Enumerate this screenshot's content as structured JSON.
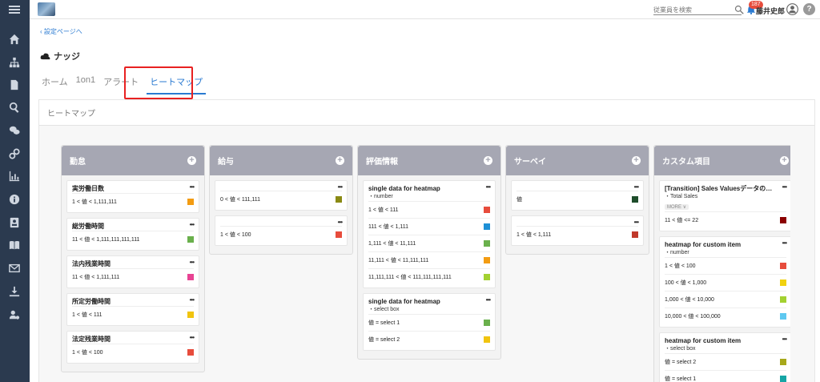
{
  "topbar": {
    "search_placeholder": "従業員を検索",
    "notification_count": "187",
    "user_name": "藤井史郎",
    "help_label": "?"
  },
  "back_link": "設定ページへ",
  "page_title": "ナッジ",
  "tabs": [
    "ホーム",
    "1on1",
    "アラート",
    "ヒートマップ"
  ],
  "active_tab": "ヒートマップ",
  "panel_title": "ヒートマップ",
  "columns": [
    {
      "title": "勤怠",
      "cards": [
        {
          "title": "実労働日数",
          "rows": [
            {
              "label": "1 < 値 < 1,111,111",
              "color": "#f39c12"
            }
          ]
        },
        {
          "title": "総労働時間",
          "rows": [
            {
              "label": "11 < 値 < 1,111,111,111,111",
              "color": "#6ab04c"
            }
          ]
        },
        {
          "title": "法内残業時間",
          "rows": [
            {
              "label": "11 < 値 < 1,111,111",
              "color": "#e84393"
            }
          ]
        },
        {
          "title": "所定労働時間",
          "rows": [
            {
              "label": "1 < 値 < 111",
              "color": "#f1c40f"
            }
          ]
        },
        {
          "title": "法定残業時間",
          "rows": [
            {
              "label": "1 < 値 < 100",
              "color": "#e74c3c"
            }
          ]
        }
      ]
    },
    {
      "title": "給与",
      "cards": [
        {
          "title": "",
          "rows": [
            {
              "label": "0 < 値 < 111,111",
              "color": "#8a8a14"
            }
          ]
        },
        {
          "title": "",
          "rows": [
            {
              "label": "1 < 値 < 100",
              "color": "#e74c3c"
            }
          ]
        }
      ]
    },
    {
      "title": "評価情報",
      "cards": [
        {
          "title": "single data for heatmap",
          "sub": "・number",
          "rows": [
            {
              "label": "1 < 値 < 111",
              "color": "#e74c3c"
            },
            {
              "label": "111 < 値 < 1,111",
              "color": "#1e90d6"
            },
            {
              "label": "1,111 < 値 < 11,111",
              "color": "#6ab04c"
            },
            {
              "label": "11,111 < 値 < 11,111,111",
              "color": "#f39c12"
            },
            {
              "label": "11,111,111 < 値 < 111,111,111,111",
              "color": "#a3d131"
            }
          ]
        },
        {
          "title": "single data for heatmap",
          "sub": "・select box",
          "rows": [
            {
              "label": "値 = select 1",
              "color": "#6ab04c"
            },
            {
              "label": "値 = select 2",
              "color": "#f1c40f"
            }
          ]
        }
      ]
    },
    {
      "title": "サーベイ",
      "cards": [
        {
          "title": "",
          "rows": [
            {
              "label": "値",
              "color": "#1e4d2b"
            }
          ]
        },
        {
          "title": "",
          "rows": [
            {
              "label": "1 < 値 < 1,111",
              "color": "#c0392b"
            }
          ]
        }
      ]
    },
    {
      "title": "カスタム項目",
      "cards": [
        {
          "title": "[Transition] Sales Valuesデータの…",
          "sub": "・Total Sales",
          "more": "MORE ∨",
          "rows": [
            {
              "label": "11 < 値 <= 22",
              "color": "#8b0000"
            }
          ]
        },
        {
          "title": "heatmap for custom item",
          "sub": "・number",
          "rows": [
            {
              "label": "1 < 値 < 100",
              "color": "#e74c3c"
            },
            {
              "label": "100 < 値 < 1,000",
              "color": "#f1d20f"
            },
            {
              "label": "1,000 < 値 < 10,000",
              "color": "#a3d131"
            },
            {
              "label": "10,000 < 値 < 100,000",
              "color": "#5ec8f0"
            }
          ]
        },
        {
          "title": "heatmap for custom item",
          "sub": "・select box",
          "rows": [
            {
              "label": "値 = select 2",
              "color": "#a7a81a"
            },
            {
              "label": "値 = select 1",
              "color": "#16a5a5"
            }
          ]
        }
      ]
    }
  ]
}
